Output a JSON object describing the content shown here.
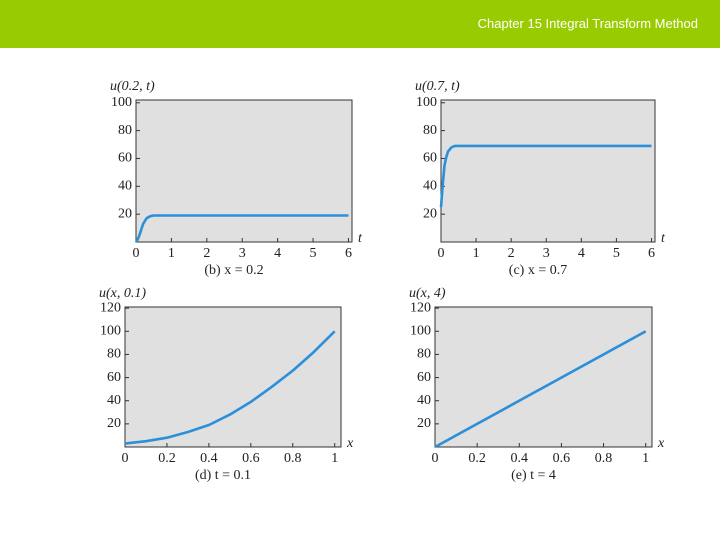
{
  "header": {
    "title": "Chapter 15 Integral Transform Method"
  },
  "chart_data": [
    {
      "type": "line",
      "y_label": "u(0.2, t)",
      "x_label": "t",
      "caption": "(b) x = 0.2",
      "x": [
        0,
        0.05,
        0.1,
        0.15,
        0.2,
        0.3,
        0.4,
        0.5,
        1,
        2,
        3,
        4,
        5,
        6
      ],
      "values": [
        0,
        2,
        5,
        9,
        13,
        17,
        18.5,
        19,
        19,
        19,
        19,
        19,
        19,
        19
      ],
      "color": "#2b8fd9",
      "xlim": [
        0,
        6.1
      ],
      "ylim": [
        0,
        102
      ],
      "xticks": [
        0,
        1,
        2,
        3,
        4,
        5,
        6
      ],
      "yticks": [
        20,
        40,
        60,
        80,
        100
      ]
    },
    {
      "type": "line",
      "y_label": "u(0.7, t)",
      "x_label": "t",
      "caption": "(c) x = 0.7",
      "x": [
        0,
        0.05,
        0.1,
        0.15,
        0.2,
        0.3,
        0.4,
        0.5,
        1,
        2,
        3,
        4,
        5,
        6
      ],
      "values": [
        25,
        42,
        55,
        61,
        65,
        68,
        69,
        69,
        69,
        69,
        69,
        69,
        69,
        69
      ],
      "color": "#2b8fd9",
      "xlim": [
        0,
        6.1
      ],
      "ylim": [
        0,
        102
      ],
      "xticks": [
        0,
        1,
        2,
        3,
        4,
        5,
        6
      ],
      "yticks": [
        20,
        40,
        60,
        80,
        100
      ]
    },
    {
      "type": "line",
      "y_label": "u(x, 0.1)",
      "x_label": "x",
      "caption": "(d) t = 0.1",
      "x": [
        0,
        0.1,
        0.2,
        0.3,
        0.4,
        0.5,
        0.6,
        0.7,
        0.8,
        0.9,
        1
      ],
      "values": [
        3,
        5,
        8,
        13,
        19,
        28,
        39,
        52,
        66,
        82,
        100
      ],
      "color": "#2b8fd9",
      "xlim": [
        0,
        1.03
      ],
      "ylim": [
        0,
        121
      ],
      "xticks": [
        0,
        0.2,
        0.4,
        0.6,
        0.8,
        1
      ],
      "yticks": [
        20,
        40,
        60,
        80,
        100,
        120
      ]
    },
    {
      "type": "line",
      "y_label": "u(x, 4)",
      "x_label": "x",
      "caption": "(e) t = 4",
      "x": [
        0,
        1
      ],
      "values": [
        0,
        100
      ],
      "color": "#2b8fd9",
      "xlim": [
        0,
        1.03
      ],
      "ylim": [
        0,
        121
      ],
      "xticks": [
        0,
        0.2,
        0.4,
        0.6,
        0.8,
        1
      ],
      "yticks": [
        20,
        40,
        60,
        80,
        100,
        120
      ]
    }
  ]
}
